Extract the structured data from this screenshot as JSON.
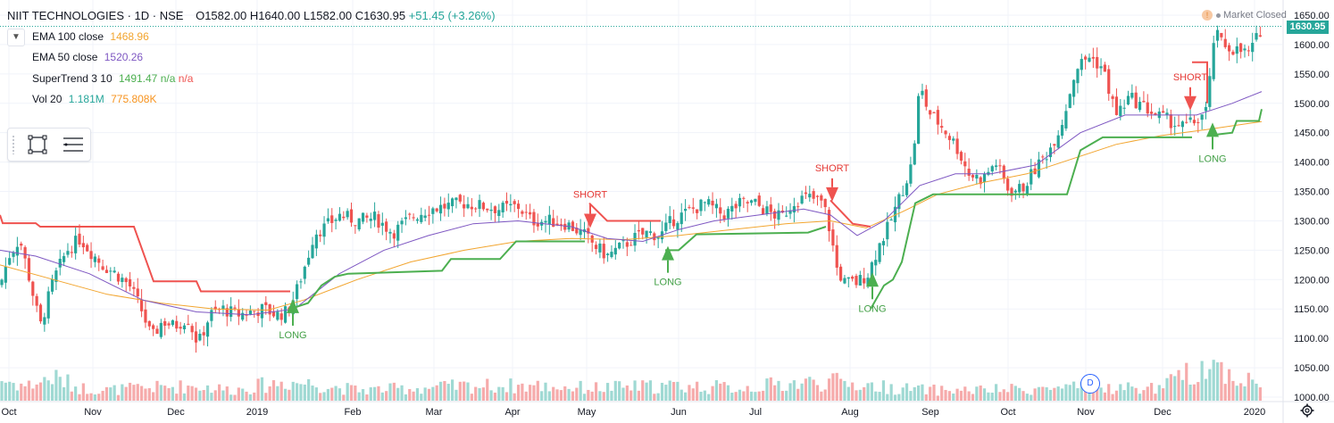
{
  "header": {
    "symbol": "NIIT TECHNOLOGIES · 1D · NSE",
    "open": "O1582.00",
    "high": "H1640.00",
    "low": "L1582.00",
    "close": "C1630.95",
    "change": "+51.45 (+3.26%)"
  },
  "indicators": [
    {
      "name": "EMA 100 close",
      "value": "1468.96",
      "color": "#f2a52f"
    },
    {
      "name": "EMA 50 close",
      "value": "1520.26",
      "color": "#7e57c2"
    },
    {
      "name": "SuperTrend 3 10",
      "value": "1491.47",
      "value2": "n/a",
      "value3": "n/a",
      "color": "#4caf50",
      "color2": "#ef5350"
    },
    {
      "name": "Vol 20",
      "value": "1.181M",
      "value2": "775.808K",
      "color": "#26a69a",
      "color2": "#f7931e"
    }
  ],
  "status": {
    "market": "Market Closed",
    "alert_icon": "clock-icon"
  },
  "price_badge": "1630.95",
  "dividend_badge": "D",
  "colors": {
    "up": "#26a69a",
    "down": "#ef5350",
    "vol_up": "#9fd9d3",
    "vol_down": "#f6abab",
    "ema100": "#f2a52f",
    "ema50": "#7e57c2",
    "st_up": "#4caf50",
    "st_down": "#ef5350",
    "grid": "#f0f3fa"
  },
  "chart_data": {
    "type": "candlestick",
    "y_axis": {
      "ticks": [
        1000,
        1050,
        1100,
        1150,
        1200,
        1250,
        1300,
        1350,
        1400,
        1450,
        1500,
        1550,
        1600,
        1650
      ],
      "labels": [
        "1000.00",
        "1050.00",
        "1100.00",
        "1150.00",
        "1200.00",
        "1250.00",
        "1300.00",
        "1350.00",
        "1400.00",
        "1450.00",
        "1500.00",
        "1550.00",
        "1600.00",
        "1650.00"
      ]
    },
    "x_axis": {
      "labels": [
        "Oct",
        "Nov",
        "Dec",
        "2019",
        "Feb",
        "Mar",
        "Apr",
        "May",
        "Jun",
        "Jul",
        "Aug",
        "Sep",
        "Oct",
        "Nov",
        "Dec",
        "2020"
      ]
    },
    "close_path": [
      [
        0,
        1190
      ],
      [
        10,
        1240
      ],
      [
        22,
        1270
      ],
      [
        34,
        1195
      ],
      [
        45,
        1120
      ],
      [
        60,
        1200
      ],
      [
        75,
        1250
      ],
      [
        90,
        1270
      ],
      [
        100,
        1250
      ],
      [
        115,
        1225
      ],
      [
        130,
        1210
      ],
      [
        145,
        1190
      ],
      [
        158,
        1150
      ],
      [
        170,
        1100
      ],
      [
        182,
        1130
      ],
      [
        195,
        1120
      ],
      [
        210,
        1135
      ],
      [
        222,
        1090
      ],
      [
        235,
        1140
      ],
      [
        250,
        1150
      ],
      [
        265,
        1140
      ],
      [
        280,
        1145
      ],
      [
        295,
        1150
      ],
      [
        310,
        1140
      ],
      [
        322,
        1145
      ],
      [
        332,
        1180
      ],
      [
        345,
        1240
      ],
      [
        352,
        1280
      ],
      [
        365,
        1290
      ],
      [
        380,
        1310
      ],
      [
        400,
        1300
      ],
      [
        420,
        1305
      ],
      [
        440,
        1280
      ],
      [
        460,
        1305
      ],
      [
        480,
        1320
      ],
      [
        500,
        1325
      ],
      [
        520,
        1330
      ],
      [
        540,
        1325
      ],
      [
        560,
        1320
      ],
      [
        580,
        1325
      ],
      [
        595,
        1300
      ],
      [
        615,
        1300
      ],
      [
        635,
        1295
      ],
      [
        655,
        1275
      ],
      [
        668,
        1255
      ],
      [
        680,
        1240
      ],
      [
        695,
        1255
      ],
      [
        710,
        1270
      ],
      [
        725,
        1280
      ],
      [
        740,
        1275
      ],
      [
        752,
        1300
      ],
      [
        770,
        1315
      ],
      [
        790,
        1330
      ],
      [
        810,
        1310
      ],
      [
        830,
        1330
      ],
      [
        845,
        1330
      ],
      [
        860,
        1315
      ],
      [
        875,
        1305
      ],
      [
        890,
        1335
      ],
      [
        905,
        1340
      ],
      [
        922,
        1330
      ],
      [
        930,
        1280
      ],
      [
        937,
        1220
      ],
      [
        945,
        1195
      ],
      [
        960,
        1195
      ],
      [
        972,
        1210
      ],
      [
        985,
        1260
      ],
      [
        995,
        1290
      ],
      [
        1005,
        1330
      ],
      [
        1015,
        1370
      ],
      [
        1022,
        1400
      ],
      [
        1030,
        1530
      ],
      [
        1040,
        1485
      ],
      [
        1055,
        1460
      ],
      [
        1070,
        1430
      ],
      [
        1085,
        1380
      ],
      [
        1100,
        1370
      ],
      [
        1115,
        1400
      ],
      [
        1130,
        1350
      ],
      [
        1145,
        1355
      ],
      [
        1160,
        1390
      ],
      [
        1175,
        1420
      ],
      [
        1190,
        1470
      ],
      [
        1205,
        1560
      ],
      [
        1220,
        1580
      ],
      [
        1235,
        1560
      ],
      [
        1250,
        1480
      ],
      [
        1265,
        1510
      ],
      [
        1280,
        1495
      ],
      [
        1295,
        1480
      ],
      [
        1310,
        1470
      ],
      [
        1325,
        1460
      ],
      [
        1340,
        1470
      ],
      [
        1352,
        1490
      ],
      [
        1360,
        1620
      ],
      [
        1370,
        1600
      ],
      [
        1385,
        1590
      ],
      [
        1400,
        1585
      ],
      [
        1413,
        1630
      ]
    ],
    "volume_path": [
      [
        0,
        1.0
      ],
      [
        30,
        0.7
      ],
      [
        60,
        1.1
      ],
      [
        90,
        0.6
      ],
      [
        120,
        0.5
      ],
      [
        160,
        0.6
      ],
      [
        220,
        0.7
      ],
      [
        260,
        0.5
      ],
      [
        320,
        0.9
      ],
      [
        350,
        0.8
      ],
      [
        400,
        0.5
      ],
      [
        470,
        0.6
      ],
      [
        530,
        0.7
      ],
      [
        600,
        0.7
      ],
      [
        660,
        0.6
      ],
      [
        760,
        0.7
      ],
      [
        830,
        0.6
      ],
      [
        880,
        0.8
      ],
      [
        930,
        0.9
      ],
      [
        1000,
        0.6
      ],
      [
        1040,
        0.5
      ],
      [
        1100,
        0.5
      ],
      [
        1200,
        0.6
      ],
      [
        1300,
        0.6
      ],
      [
        1355,
        1.8
      ],
      [
        1380,
        1.2
      ],
      [
        1413,
        0.75
      ]
    ],
    "ema100_path": [
      [
        0,
        1225
      ],
      [
        60,
        1200
      ],
      [
        120,
        1175
      ],
      [
        180,
        1160
      ],
      [
        240,
        1150
      ],
      [
        300,
        1148
      ],
      [
        340,
        1165
      ],
      [
        400,
        1200
      ],
      [
        460,
        1230
      ],
      [
        520,
        1250
      ],
      [
        580,
        1265
      ],
      [
        640,
        1270
      ],
      [
        700,
        1268
      ],
      [
        760,
        1275
      ],
      [
        820,
        1285
      ],
      [
        880,
        1295
      ],
      [
        930,
        1300
      ],
      [
        970,
        1288
      ],
      [
        1010,
        1315
      ],
      [
        1050,
        1345
      ],
      [
        1100,
        1365
      ],
      [
        1150,
        1380
      ],
      [
        1200,
        1405
      ],
      [
        1250,
        1430
      ],
      [
        1300,
        1445
      ],
      [
        1350,
        1455
      ],
      [
        1413,
        1469
      ]
    ],
    "ema50_path": [
      [
        0,
        1250
      ],
      [
        40,
        1240
      ],
      [
        100,
        1210
      ],
      [
        160,
        1165
      ],
      [
        220,
        1145
      ],
      [
        280,
        1140
      ],
      [
        330,
        1150
      ],
      [
        380,
        1210
      ],
      [
        430,
        1250
      ],
      [
        480,
        1275
      ],
      [
        530,
        1295
      ],
      [
        580,
        1300
      ],
      [
        640,
        1290
      ],
      [
        680,
        1270
      ],
      [
        720,
        1265
      ],
      [
        760,
        1285
      ],
      [
        800,
        1300
      ],
      [
        850,
        1310
      ],
      [
        900,
        1320
      ],
      [
        930,
        1310
      ],
      [
        960,
        1275
      ],
      [
        990,
        1300
      ],
      [
        1030,
        1360
      ],
      [
        1070,
        1380
      ],
      [
        1110,
        1380
      ],
      [
        1160,
        1395
      ],
      [
        1210,
        1450
      ],
      [
        1260,
        1480
      ],
      [
        1300,
        1480
      ],
      [
        1340,
        1480
      ],
      [
        1380,
        1500
      ],
      [
        1413,
        1520
      ]
    ],
    "supertrend_segments": [
      {
        "trend": "down",
        "points": [
          [
            0,
            1310
          ],
          [
            3,
            1296
          ],
          [
            40,
            1296
          ],
          [
            45,
            1290
          ],
          [
            150,
            1290
          ],
          [
            172,
            1197
          ],
          [
            220,
            1197
          ],
          [
            225,
            1180
          ],
          [
            325,
            1180
          ]
        ]
      },
      {
        "trend": "up",
        "points": [
          [
            325,
            1150
          ],
          [
            345,
            1160
          ],
          [
            360,
            1190
          ],
          [
            375,
            1205
          ],
          [
            390,
            1210
          ],
          [
            495,
            1215
          ],
          [
            505,
            1235
          ],
          [
            560,
            1235
          ],
          [
            578,
            1265
          ],
          [
            655,
            1265
          ]
        ]
      },
      {
        "trend": "down",
        "points": [
          [
            660,
            1330
          ],
          [
            680,
            1300
          ],
          [
            740,
            1300
          ]
        ]
      },
      {
        "trend": "up",
        "points": [
          [
            745,
            1250
          ],
          [
            760,
            1250
          ],
          [
            780,
            1277
          ],
          [
            905,
            1280
          ],
          [
            925,
            1290
          ]
        ]
      },
      {
        "trend": "down",
        "points": [
          [
            930,
            1335
          ],
          [
            955,
            1295
          ],
          [
            975,
            1290
          ]
        ]
      },
      {
        "trend": "up",
        "points": [
          [
            975,
            1150
          ],
          [
            990,
            1190
          ],
          [
            1000,
            1200
          ],
          [
            1010,
            1230
          ],
          [
            1025,
            1330
          ],
          [
            1045,
            1345
          ],
          [
            1195,
            1345
          ],
          [
            1210,
            1420
          ],
          [
            1235,
            1442
          ],
          [
            1335,
            1442
          ]
        ]
      },
      {
        "trend": "down",
        "points": [
          [
            1335,
            1570
          ],
          [
            1352,
            1570
          ],
          [
            1352,
            1500
          ]
        ]
      },
      {
        "trend": "up",
        "points": [
          [
            1352,
            1445
          ],
          [
            1380,
            1450
          ],
          [
            1385,
            1470
          ],
          [
            1410,
            1470
          ],
          [
            1413,
            1490
          ]
        ]
      }
    ],
    "signals": [
      {
        "type": "LONG",
        "x": 328,
        "price": 1155
      },
      {
        "type": "SHORT",
        "x": 661,
        "price": 1300
      },
      {
        "type": "LONG",
        "x": 748,
        "price": 1245
      },
      {
        "type": "SHORT",
        "x": 932,
        "price": 1345
      },
      {
        "type": "LONG",
        "x": 977,
        "price": 1200
      },
      {
        "type": "SHORT",
        "x": 1333,
        "price": 1500
      },
      {
        "type": "LONG",
        "x": 1358,
        "price": 1455
      }
    ],
    "current_price": 1630.95
  }
}
